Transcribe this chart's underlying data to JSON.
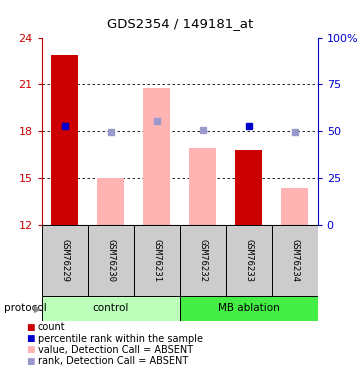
{
  "title": "GDS2354 / 149181_at",
  "samples": [
    "GSM76229",
    "GSM76230",
    "GSM76231",
    "GSM76232",
    "GSM76233",
    "GSM76234"
  ],
  "red_bar_values": [
    22.9,
    null,
    null,
    null,
    16.8,
    null
  ],
  "pink_bar_values": [
    null,
    15.0,
    20.8,
    16.9,
    null,
    14.4
  ],
  "blue_square_values": [
    18.35,
    17.95,
    18.65,
    18.1,
    18.35,
    17.95
  ],
  "blue_square_dark": [
    true,
    false,
    false,
    false,
    true,
    false
  ],
  "ylim_left": [
    12,
    24
  ],
  "ylim_right": [
    0,
    100
  ],
  "yticks_left": [
    12,
    15,
    18,
    21,
    24
  ],
  "yticks_right": [
    0,
    25,
    50,
    75,
    100
  ],
  "ytick_labels_right": [
    "0",
    "25",
    "50",
    "75",
    "100%"
  ],
  "red_color": "#cc0000",
  "pink_color": "#ffb3b3",
  "blue_dark": "#0000cc",
  "blue_light": "#9999cc",
  "group_spans": [
    {
      "label": "control",
      "start": 0,
      "end": 3,
      "color": "#bbffbb"
    },
    {
      "label": "MB ablation",
      "start": 3,
      "end": 6,
      "color": "#44ee44"
    }
  ],
  "legend_items": [
    {
      "color": "#cc0000",
      "label": "count"
    },
    {
      "color": "#0000cc",
      "label": "percentile rank within the sample"
    },
    {
      "color": "#ffb3b3",
      "label": "value, Detection Call = ABSENT"
    },
    {
      "color": "#9999cc",
      "label": "rank, Detection Call = ABSENT"
    }
  ]
}
